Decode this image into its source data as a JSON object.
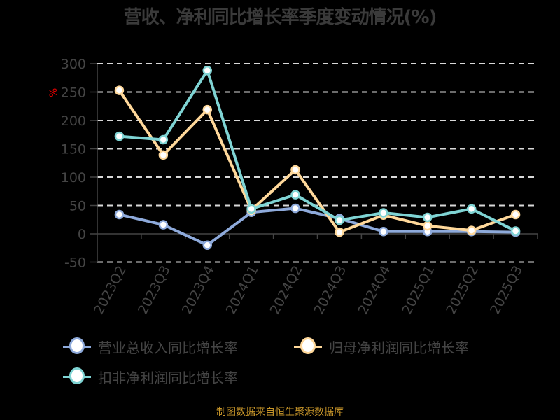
{
  "title": "营收、净利同比增长率季度变动情况(%)",
  "source": "制图数据来自恒生聚源数据库",
  "colors": {
    "revenue": "#8eaadb",
    "net_profit": "#ffd89a",
    "deducted_profit": "#7fd4d4",
    "unit": "#e00000",
    "source": "#c8962a"
  },
  "legend": [
    {
      "label": "营业总收入同比增长率",
      "color": "#8eaadb"
    },
    {
      "label": "归母净利润同比增长率",
      "color": "#ffd89a"
    },
    {
      "label": "扣非净利润同比增长率",
      "color": "#7fd4d4"
    }
  ],
  "chart_data": {
    "type": "line",
    "title": "营收、净利同比增长率季度变动情况(%)",
    "xlabel": "",
    "ylabel": "%",
    "categories": [
      "2023Q2",
      "2023Q3",
      "2023Q4",
      "2024Q1",
      "2024Q2",
      "2024Q3",
      "2024Q4",
      "2025Q1",
      "2025Q2",
      "2025Q3"
    ],
    "yticks": [
      300,
      250,
      200,
      150,
      100,
      50,
      0,
      -50
    ],
    "ylim": [
      -50,
      300
    ],
    "grid": true,
    "legend_position": "bottom",
    "series": [
      {
        "name": "营业总收入同比增长率",
        "values": [
          34,
          16,
          -20,
          38,
          45,
          27,
          4,
          4,
          4,
          3
        ]
      },
      {
        "name": "归母净利润同比增长率",
        "values": [
          253,
          139,
          219,
          42,
          113,
          3,
          33,
          14,
          6,
          34
        ]
      },
      {
        "name": "扣非净利润同比增长率",
        "values": [
          172,
          166,
          288,
          44,
          69,
          24,
          37,
          29,
          44,
          5
        ]
      }
    ]
  }
}
